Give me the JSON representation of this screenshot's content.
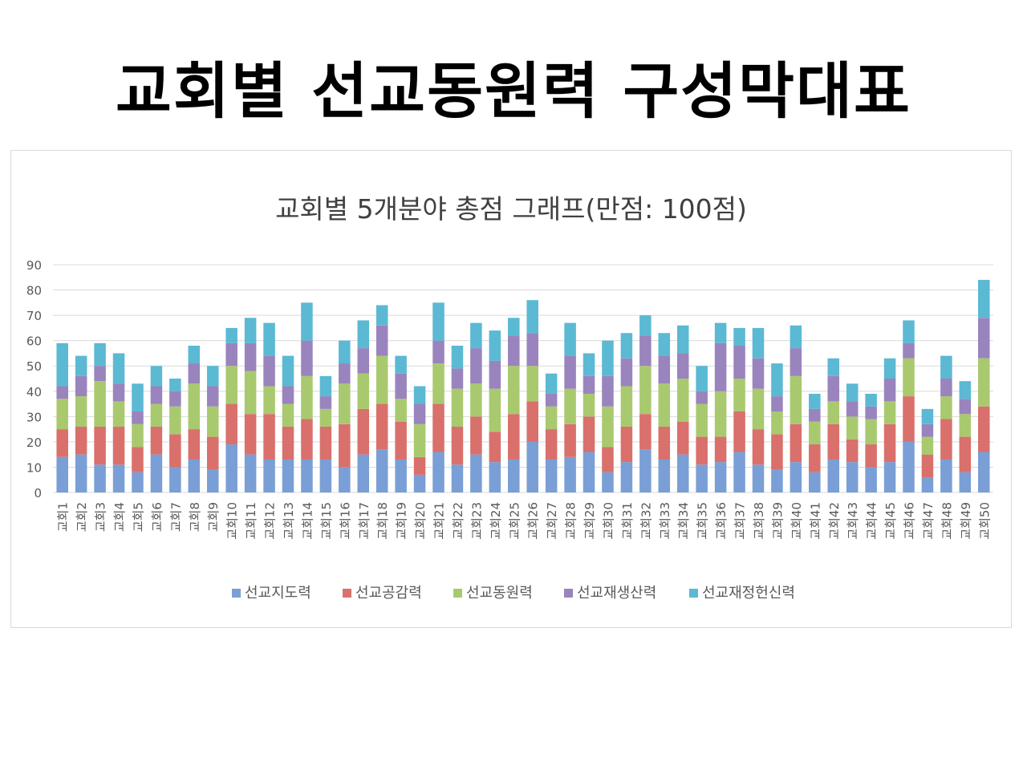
{
  "page": {
    "title": "교회별 선교동원력 구성막대표"
  },
  "colors": {
    "series": [
      "#7a9fd6",
      "#d9706c",
      "#a9c96f",
      "#9a84bd",
      "#5bb9d4"
    ],
    "grid": "#d9d9d9",
    "axis_text": "#595959",
    "chart_title": "#404040"
  },
  "chart_data": {
    "type": "bar",
    "stacked": true,
    "title": "교회별 5개분야 총점 그래프(만점: 100점)",
    "xlabel": "",
    "ylabel": "",
    "ylim": [
      0,
      90
    ],
    "yticks": [
      0,
      10,
      20,
      30,
      40,
      50,
      60,
      70,
      80,
      90
    ],
    "grid": true,
    "legend_position": "bottom",
    "categories": [
      "교회1",
      "교회2",
      "교회3",
      "교회4",
      "교회5",
      "교회6",
      "교회7",
      "교회8",
      "교회9",
      "교회10",
      "교회11",
      "교회12",
      "교회13",
      "교회14",
      "교회15",
      "교회16",
      "교회17",
      "교회18",
      "교회19",
      "교회20",
      "교회21",
      "교회22",
      "교회23",
      "교회24",
      "교회25",
      "교회26",
      "교회27",
      "교회28",
      "교회29",
      "교회30",
      "교회31",
      "교회32",
      "교회33",
      "교회34",
      "교회35",
      "교회36",
      "교회37",
      "교회38",
      "교회39",
      "교회40",
      "교회41",
      "교회42",
      "교회43",
      "교회44",
      "교회45",
      "교회46",
      "교회47",
      "교회48",
      "교회49",
      "교회50"
    ],
    "series": [
      {
        "name": "선교지도력",
        "values": [
          14,
          15,
          11,
          11,
          8,
          15,
          10,
          13,
          9,
          19,
          15,
          13,
          13,
          13,
          13,
          10,
          15,
          17,
          13,
          7,
          16,
          11,
          15,
          12,
          13,
          20,
          13,
          14,
          16,
          8,
          12,
          17,
          13,
          15,
          11,
          12,
          16,
          11,
          9,
          12,
          8,
          13,
          12,
          10,
          12,
          20,
          6,
          13,
          8,
          16
        ]
      },
      {
        "name": "선교공감력",
        "values": [
          11,
          11,
          15,
          15,
          10,
          11,
          13,
          12,
          13,
          16,
          16,
          18,
          13,
          16,
          13,
          17,
          18,
          18,
          15,
          7,
          19,
          15,
          15,
          12,
          18,
          16,
          12,
          13,
          14,
          10,
          14,
          14,
          13,
          13,
          11,
          10,
          16,
          14,
          14,
          15,
          11,
          14,
          9,
          9,
          15,
          18,
          9,
          16,
          14,
          18
        ]
      },
      {
        "name": "선교동원력",
        "values": [
          12,
          12,
          18,
          10,
          9,
          9,
          11,
          18,
          12,
          15,
          17,
          11,
          9,
          17,
          7,
          16,
          14,
          19,
          9,
          13,
          16,
          15,
          13,
          17,
          19,
          14,
          9,
          14,
          9,
          16,
          16,
          19,
          17,
          17,
          13,
          18,
          13,
          16,
          9,
          19,
          9,
          9,
          9,
          10,
          9,
          15,
          7,
          9,
          9,
          19
        ]
      },
      {
        "name": "선교재생산력",
        "values": [
          5,
          8,
          6,
          7,
          5,
          7,
          6,
          8,
          8,
          9,
          11,
          12,
          7,
          14,
          5,
          8,
          10,
          12,
          10,
          8,
          9,
          8,
          14,
          11,
          12,
          13,
          5,
          13,
          7,
          12,
          11,
          12,
          11,
          10,
          5,
          19,
          13,
          12,
          6,
          11,
          5,
          10,
          6,
          5,
          9,
          6,
          5,
          7,
          6,
          16
        ]
      },
      {
        "name": "선교재정헌신력",
        "values": [
          17,
          8,
          9,
          12,
          11,
          8,
          5,
          7,
          8,
          6,
          10,
          13,
          12,
          15,
          8,
          9,
          11,
          8,
          7,
          7,
          15,
          9,
          10,
          12,
          7,
          13,
          8,
          13,
          9,
          14,
          10,
          8,
          9,
          11,
          10,
          8,
          7,
          12,
          13,
          9,
          6,
          7,
          7,
          5,
          8,
          9,
          6,
          9,
          7,
          15
        ]
      }
    ]
  }
}
